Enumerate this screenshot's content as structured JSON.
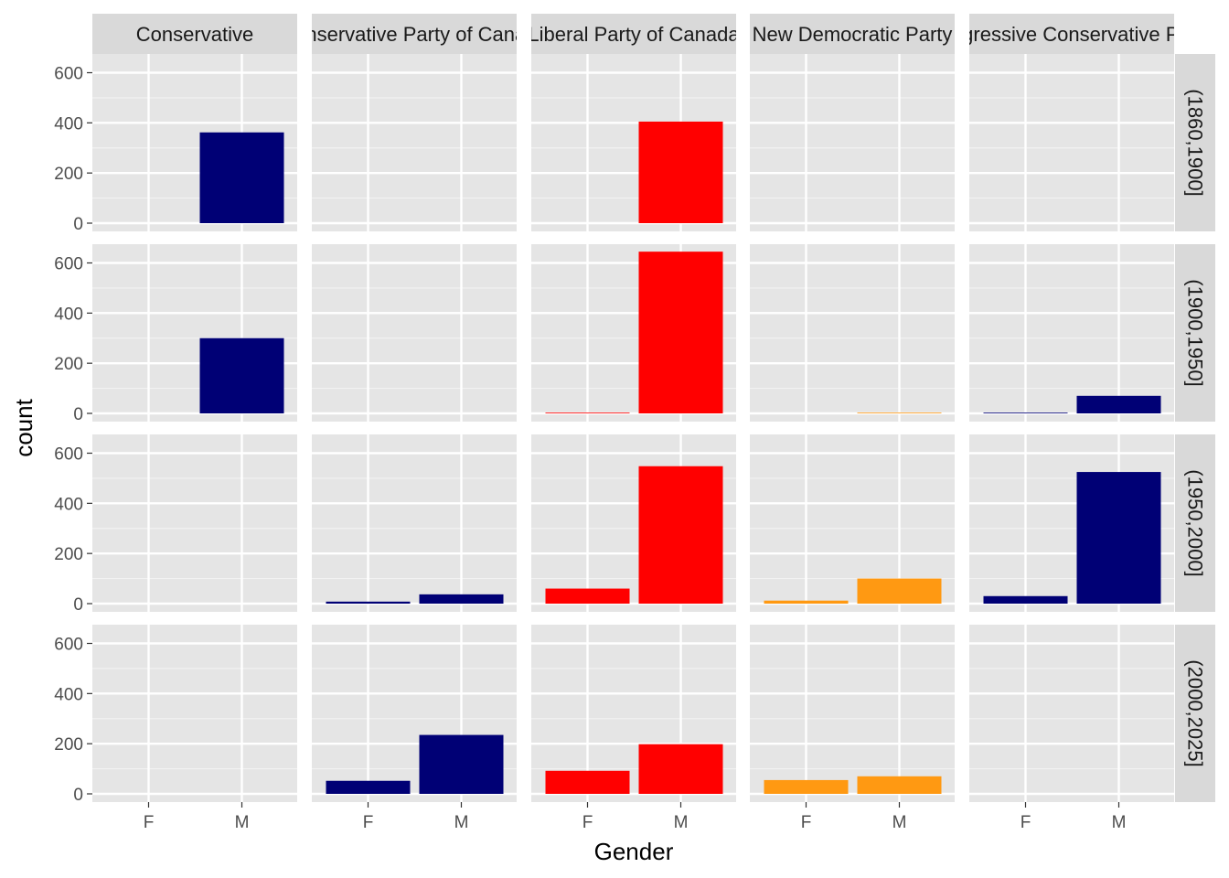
{
  "chart_data": {
    "type": "bar",
    "facet_type": "grid",
    "xlabel": "Gender",
    "ylabel": "count",
    "ylim": [
      0,
      680
    ],
    "yticks": [
      0,
      200,
      400,
      600
    ],
    "categories": [
      "F",
      "M"
    ],
    "columns": [
      "Conservative",
      "Conservative Party of Canada",
      "Liberal Party of Canada",
      "New Democratic Party",
      "Progressive Conservative Party"
    ],
    "rows": [
      "(1860,1900]",
      "(1900,1950]",
      "(1950,2000]",
      "(2000,2025]"
    ],
    "column_colors": [
      "#000075",
      "#000075",
      "#ff0000",
      "#ff9912",
      "#000075"
    ],
    "panel_background": "#e5e5e5",
    "strip_background": "#d9d9d9",
    "grid": true,
    "legend": "none",
    "values": [
      [
        [
          0,
          362
        ],
        [
          0,
          0
        ],
        [
          0,
          405
        ],
        [
          0,
          0
        ],
        [
          0,
          0
        ]
      ],
      [
        [
          0,
          300
        ],
        [
          0,
          0
        ],
        [
          3,
          645
        ],
        [
          0,
          3
        ],
        [
          3,
          70
        ]
      ],
      [
        [
          0,
          0
        ],
        [
          8,
          37
        ],
        [
          60,
          548
        ],
        [
          12,
          100
        ],
        [
          30,
          525
        ]
      ],
      [
        [
          0,
          0
        ],
        [
          52,
          235
        ],
        [
          92,
          198
        ],
        [
          55,
          70
        ],
        [
          0,
          0
        ]
      ]
    ]
  }
}
